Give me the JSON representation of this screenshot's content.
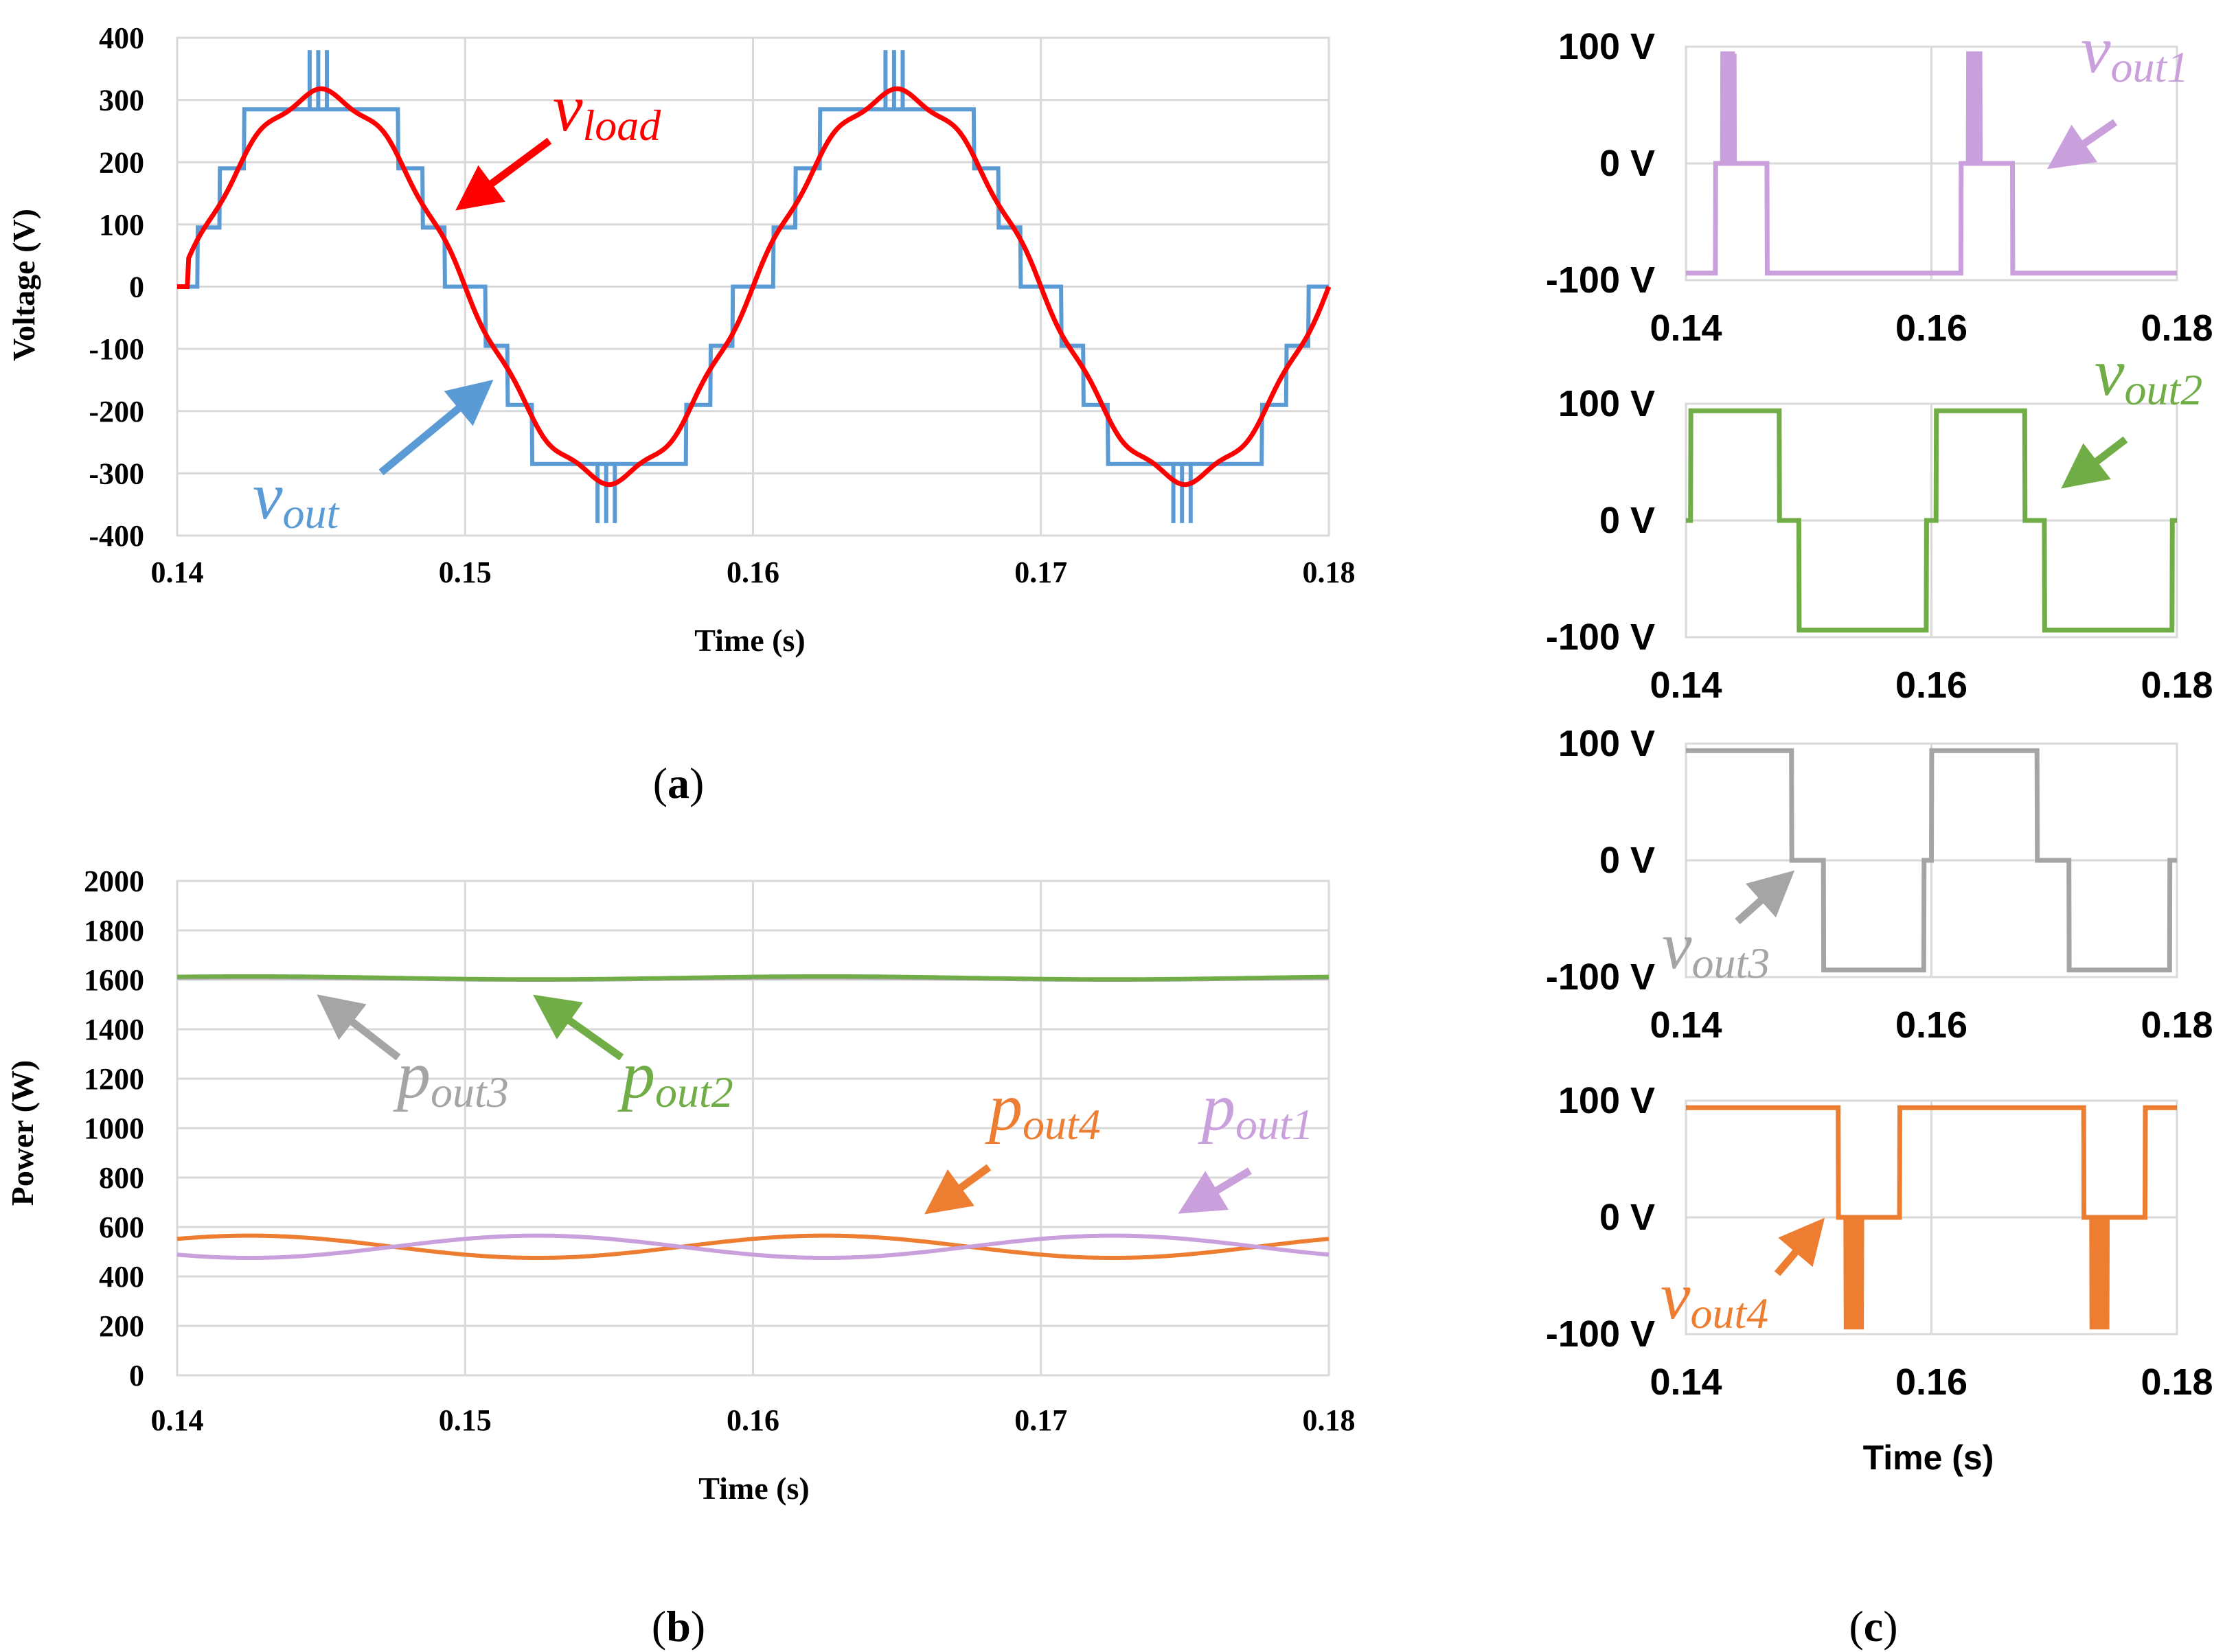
{
  "colors": {
    "vout": "#5b9bd5",
    "vload": "#ff0000",
    "vout1": "#c9a0dc",
    "vout2": "#70ad47",
    "vout3": "#a5a5a5",
    "vout4": "#ed7d31",
    "grid": "#d9d9d9"
  },
  "chart_data": [
    {
      "id": "a",
      "type": "line",
      "caption_letter": "a",
      "xlabel": "Time (s)",
      "ylabel": "Voltage (V)",
      "xlim": [
        0.14,
        0.18
      ],
      "ylim": [
        -400,
        400
      ],
      "xticks": [
        "0.14",
        "0.15",
        "0.16",
        "0.17",
        "0.18"
      ],
      "yticks": [
        "400",
        "300",
        "200",
        "100",
        "0",
        "-100",
        "-200",
        "-300",
        "-400"
      ],
      "series": [
        {
          "name": "vout",
          "label_main": "v",
          "label_sub": "out",
          "description": "9-level staircase, 50 Hz, levels ±95/±190/±285/±380 V with switching spikes"
        },
        {
          "name": "vload",
          "label_main": "v",
          "label_sub": "load",
          "description": "sinusoid ~310 V peak, 50 Hz"
        }
      ]
    },
    {
      "id": "b",
      "type": "line",
      "caption_letter": "b",
      "xlabel": "Time (s)",
      "ylabel": "Power (W)",
      "xlim": [
        0.14,
        0.18
      ],
      "ylim": [
        0,
        2000
      ],
      "xticks": [
        "0.14",
        "0.15",
        "0.16",
        "0.17",
        "0.18"
      ],
      "yticks": [
        "2000",
        "1800",
        "1600",
        "1400",
        "1200",
        "1000",
        "800",
        "600",
        "400",
        "200",
        "0"
      ],
      "series": [
        {
          "name": "pout3",
          "label_main": "p",
          "label_sub": "out3",
          "mean": 1605,
          "amplitude": 5
        },
        {
          "name": "pout2",
          "label_main": "p",
          "label_sub": "out2",
          "mean": 1608,
          "amplitude": 6
        },
        {
          "name": "pout4",
          "label_main": "p",
          "label_sub": "out4",
          "mean": 520,
          "amplitude": 45
        },
        {
          "name": "pout1",
          "label_main": "p",
          "label_sub": "out1",
          "mean": 520,
          "amplitude": -45
        }
      ]
    },
    {
      "id": "c",
      "type": "line",
      "caption_letter": "c",
      "xlabel": "Time (s)",
      "xlim": [
        0.14,
        0.18
      ],
      "ylim": [
        -100,
        100
      ],
      "xticks": [
        "0.14",
        "0.16",
        "0.18"
      ],
      "yticks": [
        "100 V",
        "0 V",
        "-100 V"
      ],
      "panels": [
        {
          "name": "vout1",
          "label_main": "v",
          "label_sub": "out1",
          "levels": "0 V near positive half-cycle peak with +100 V pulses, otherwise -100 V"
        },
        {
          "name": "vout2",
          "label_main": "v",
          "label_sub": "out2",
          "levels": "+100 V / 0 V / -100 V square-like wave"
        },
        {
          "name": "vout3",
          "label_main": "v",
          "label_sub": "out3",
          "levels": "+100 V then 0 V then -100 V"
        },
        {
          "name": "vout4",
          "label_main": "v",
          "label_sub": "out4",
          "levels": "+100 V except near negative peak where 0 V with -100 V pulses"
        }
      ]
    }
  ]
}
